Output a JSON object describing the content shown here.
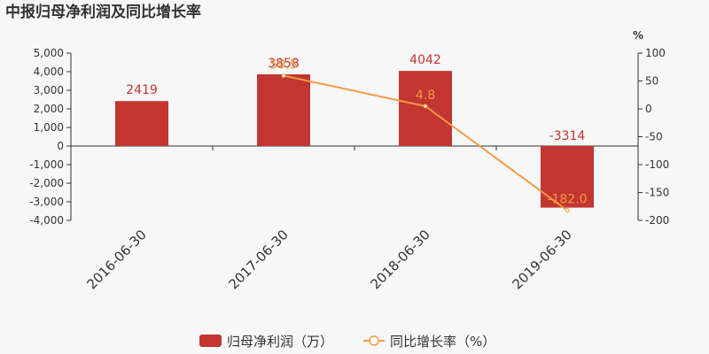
{
  "chart_data": {
    "type": "bar",
    "title": "中报归母净利润及同比增长率",
    "categories": [
      "2016-06-30",
      "2017-06-30",
      "2018-06-30",
      "2019-06-30"
    ],
    "series": [
      {
        "name": "归母净利润（万）",
        "type": "bar",
        "axis": "left",
        "values": [
          2419,
          3858,
          4042,
          -3314
        ],
        "labels": [
          "2419",
          "3858",
          "4042",
          "-3314"
        ],
        "color": "#c23531"
      },
      {
        "name": "同比增长率（%）",
        "type": "line",
        "axis": "right",
        "values": [
          null,
          59.5,
          4.8,
          -182.0
        ],
        "labels": [
          "",
          "59.5",
          "4.8",
          "-182.0"
        ],
        "color": "#f39a43"
      }
    ],
    "y_left": {
      "min": -4000,
      "max": 5000,
      "ticks": [
        5000,
        4000,
        3000,
        2000,
        1000,
        0,
        -1000,
        -2000,
        -3000,
        -4000
      ],
      "tick_labels": [
        "5,000",
        "4,000",
        "3,000",
        "2,000",
        "1,000",
        "0",
        "-1,000",
        "-2,000",
        "-3,000",
        "-4,000"
      ]
    },
    "y_right": {
      "min": -200,
      "max": 100,
      "unit": "%",
      "ticks": [
        100,
        50,
        0,
        -50,
        -100,
        -150,
        -200
      ],
      "tick_labels": [
        "100",
        "50",
        "0",
        "-50",
        "-100",
        "-150",
        "-200"
      ]
    },
    "legend_position": "bottom-center",
    "grid": false
  }
}
